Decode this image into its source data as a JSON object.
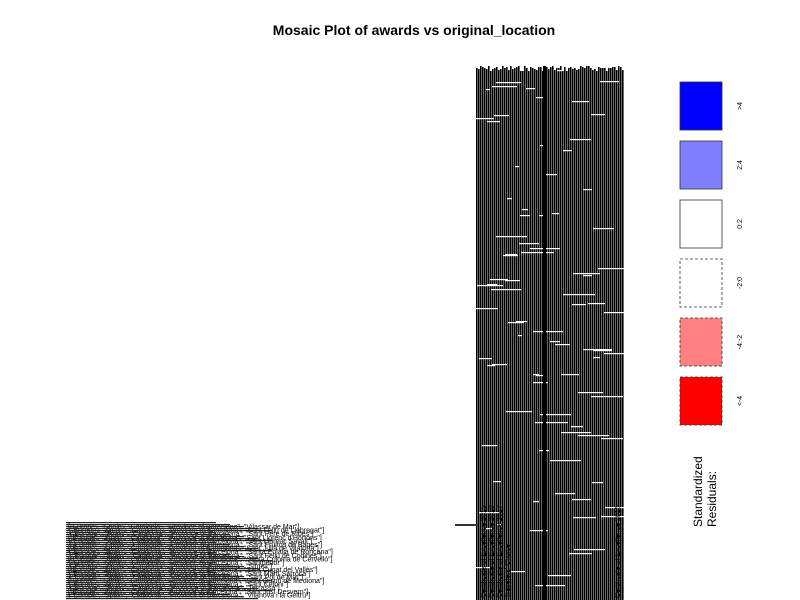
{
  "chart_data": {
    "type": "mosaic",
    "title": "Mosaic Plot of awards vs original_location",
    "row_variable": "awards",
    "column_variable": "original_location",
    "row_labels_visible": [
      "Certificate of Excellence 2015",
      "Certificate of Excellence 2016",
      "Certificate of Excellence 2017",
      "Travelers' Choice"
    ],
    "column_labels_visible": [
      "[\"Europe\", \"Spain\", \"Catalonia\", \"Province of Barcelona\", \"Vilassar de Mar\"]",
      "[\"Europe\", \"Spain\", \"Catalonia\", \"Province of Barcelona\", \"Sant Feliu de Llobregat\"]",
      "[\"Europe\", \"Spain\", \"Catalonia\", \"Province of Barcelona\", \"Sant Pere de Ribes\"]",
      "[\"Europe\", \"Spain\", \"Catalonia\", \"Province of Barcelona\", \"Sant Llorenç d'Hortons\"]",
      "[\"Europe\", \"Spain\", \"Catalonia\", \"Province of Barcelona\", \"Sant Llorenç Savall\"]",
      "[\"Europe\", \"Spain\", \"Catalonia\", \"Province of Barcelona\", \"Sant Fruitós de Bages\"]",
      "[\"Europe\", \"Spain\", \"Catalonia\", \"Province of Barcelona\", \"Sant Julià de Vilatorta\"]",
      "[\"Europe\", \"Spain\", \"Catalonia\", \"Province of Barcelona\", \"Santa Eulàlia de Ronçana\"]",
      "[\"Europe\", \"Spain\", \"Catalonia\", \"Province of Barcelona\", \"Sant Feliu de Codines\"]",
      "[\"Europe\", \"Spain\", \"Catalonia\", \"Province of Barcelona\", \"Santa Coloma de Cervelló\"]",
      "[\"Europe\", \"Spain\", \"Catalonia\", \"Province of Barcelona\", \"Santpedor\"]",
      "[\"Europe\", \"Spain\", \"Catalonia\", \"Province of Barcelona\", \"Sitges\"]",
      "[\"Europe\", \"Spain\", \"Catalonia\", \"Province of Barcelona\", \"Sant Cugat del Vallès\"]",
      "[\"Europe\", \"Spain\", \"Catalonia\", \"Province of Barcelona\", \"Sant Martí Sarroca\"]",
      "[\"Europe\", \"Spain\", \"Catalonia\", \"Province of Barcelona\", \"Sant Pol de Mar\"]",
      "[\"Europe\", \"Spain\", \"Catalonia\", \"Province of Barcelona\", \"Sant Quintí de Mediona\"]",
      "[\"Europe\", \"Spain\", \"Catalonia\", \"Province of Barcelona\", \"Sant Celoni\"]",
      "[\"Europe\", \"Spain\", \"Catalonia\", \"Province of Barcelona\", \"Terrassa\"]",
      "[\"Europe\", \"Spain\", \"Catalonia\", \"Province of Barcelona\", \"Sant Just Desvern\"]",
      "[\"Europe\", \"Spain\", \"Catalonia\", \"Province of Barcelona\", \"Vilanova i la Geltrú\"]"
    ],
    "legend": {
      "title_line1": "Standardized",
      "title_line2": "Residuals:",
      "bins": [
        {
          "label": ">4",
          "color": "#0000ff",
          "border": "solid"
        },
        {
          "label": "2:4",
          "color": "#8080ff",
          "border": "solid"
        },
        {
          "label": "0:2",
          "color": "#ffffff",
          "border": "solid"
        },
        {
          "label": "-2:0",
          "color": "#ffffff",
          "border": "dashed"
        },
        {
          "label": "-4:-2",
          "color": "#ff8080",
          "border": "dashed"
        },
        {
          "label": "<-4",
          "color": "#ff0000",
          "border": "dashed"
        }
      ]
    }
  }
}
